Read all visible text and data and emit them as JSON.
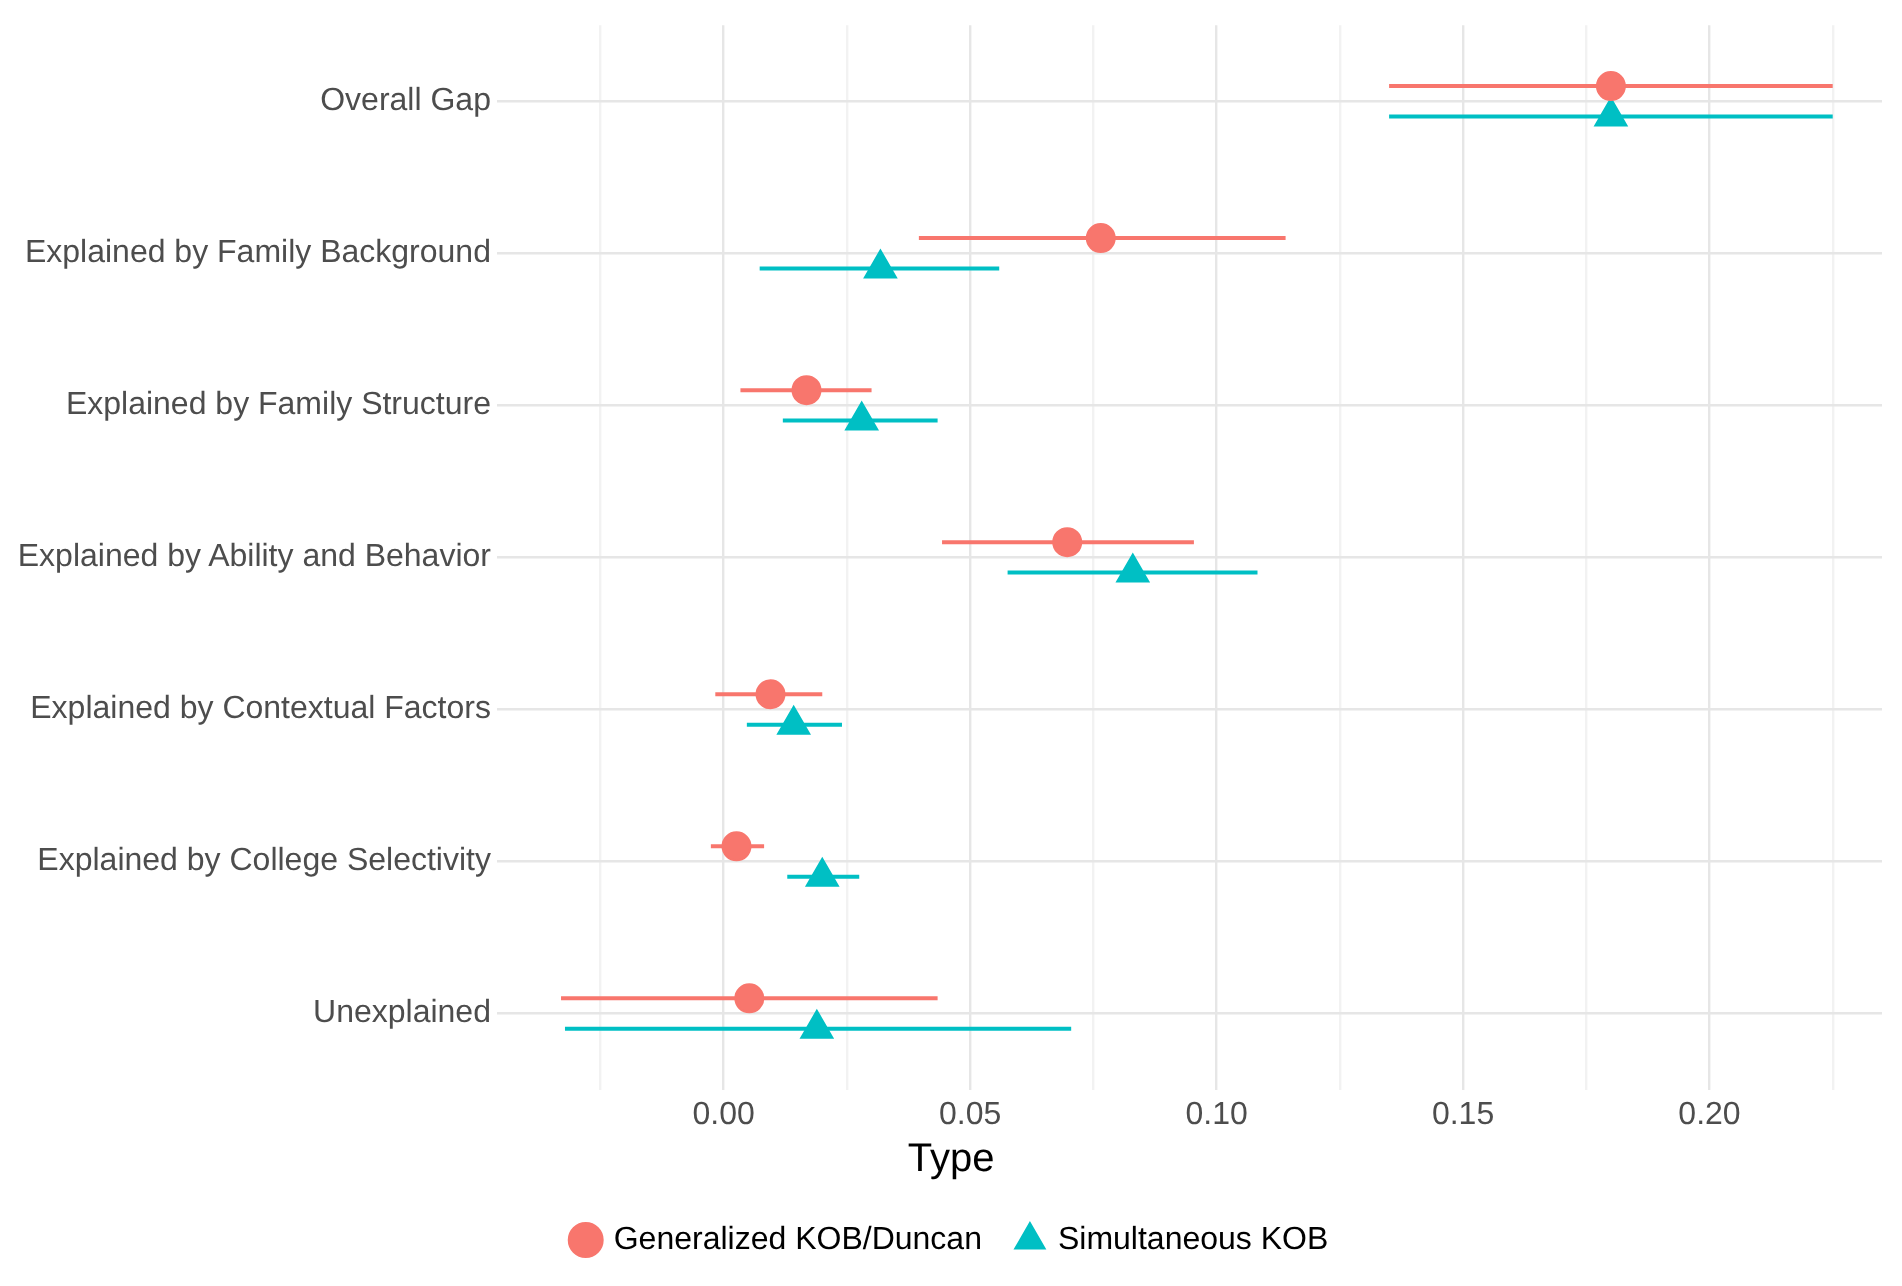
{
  "chart_data": {
    "type": "scatter",
    "orientation": "horizontal",
    "categories": [
      "Overall Gap",
      "Explained by Family Background",
      "Explained by Family Structure",
      "Explained by Ability and Behavior",
      "Explained by Contextual Factors",
      "Explained by College Selectivity",
      "Unexplained"
    ],
    "series": [
      {
        "name": "Generalized KOB/Duncan",
        "color": "#f8766d",
        "marker": "circle",
        "values": [
          0.18,
          0.0765,
          0.0168,
          0.0697,
          0.0095,
          0.0026,
          0.0052
        ],
        "errors": [
          [
            0.135,
            0.225
          ],
          [
            0.0396,
            0.114
          ],
          [
            0.0034,
            0.03
          ],
          [
            0.0443,
            0.0954
          ],
          [
            -0.0017,
            0.02
          ],
          [
            -0.0026,
            0.0082
          ],
          [
            -0.033,
            0.0434
          ]
        ]
      },
      {
        "name": "Simultaneous KOB",
        "color": "#00bfc4",
        "marker": "triangle",
        "values": [
          0.18,
          0.0318,
          0.028,
          0.083,
          0.0142,
          0.02,
          0.0189
        ],
        "errors": [
          [
            0.135,
            0.225
          ],
          [
            0.0073,
            0.0559
          ],
          [
            0.012,
            0.0434
          ],
          [
            0.0576,
            0.1083
          ],
          [
            0.0047,
            0.024
          ],
          [
            0.0129,
            0.0275
          ],
          [
            -0.0322,
            0.0705
          ]
        ]
      }
    ],
    "xlim": [
      -0.046,
      0.235
    ],
    "xticks": [
      {
        "value": -0.025,
        "label": null
      },
      {
        "value": 0,
        "label": "0.00"
      },
      {
        "value": 0.025,
        "label": null
      },
      {
        "value": 0.05,
        "label": "0.05"
      },
      {
        "value": 0.075,
        "label": null
      },
      {
        "value": 0.1,
        "label": "0.10"
      },
      {
        "value": 0.125,
        "label": null
      },
      {
        "value": 0.15,
        "label": "0.15"
      },
      {
        "value": 0.175,
        "label": null
      },
      {
        "value": 0.2,
        "label": "0.20"
      },
      {
        "value": 0.225,
        "label": null
      }
    ],
    "legend_title": "Type",
    "legend": "bottom",
    "grid": true
  }
}
